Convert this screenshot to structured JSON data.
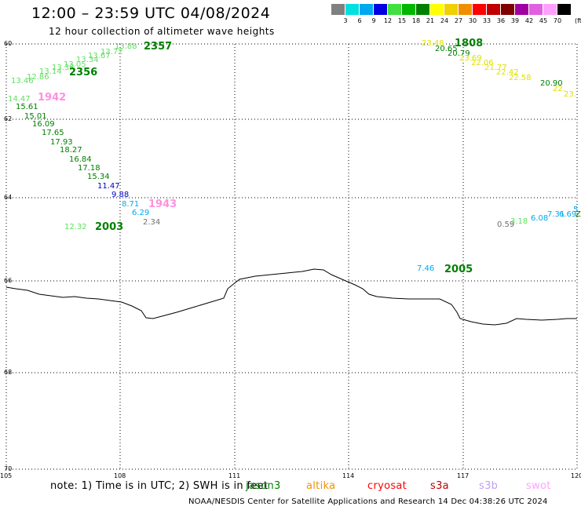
{
  "header": {
    "title": "12:00 – 23:59 UTC 04/08/2024",
    "subtitle": "12 hour collection of altimeter wave heights"
  },
  "legend": {
    "unit": "(ft)",
    "items": [
      {
        "label": "3",
        "color": "#808080"
      },
      {
        "label": "6",
        "color": "#00e0e0"
      },
      {
        "label": "9",
        "color": "#00a8f0"
      },
      {
        "label": "12",
        "color": "#0000e0"
      },
      {
        "label": "15",
        "color": "#40e040"
      },
      {
        "label": "18",
        "color": "#00b800"
      },
      {
        "label": "21",
        "color": "#008000"
      },
      {
        "label": "24",
        "color": "#ffff00"
      },
      {
        "label": "27",
        "color": "#f0d000"
      },
      {
        "label": "30",
        "color": "#f09000"
      },
      {
        "label": "33",
        "color": "#ff0000"
      },
      {
        "label": "36",
        "color": "#c00000"
      },
      {
        "label": "39",
        "color": "#800000"
      },
      {
        "label": "42",
        "color": "#a000a0"
      },
      {
        "label": "45",
        "color": "#e060e0"
      },
      {
        "label": "70",
        "color": "#ffa0ff"
      },
      {
        "label": "",
        "color": "#000000"
      }
    ]
  },
  "axes": {
    "lat_labels": [
      "60",
      "62",
      "64",
      "66",
      "68",
      "70"
    ],
    "lon_labels": [
      "105",
      "108",
      "111",
      "114",
      "117",
      "120"
    ]
  },
  "passes": [
    {
      "label": "2357",
      "color": "#008000"
    },
    {
      "label": "2356",
      "color": "#008000"
    },
    {
      "label": "1942",
      "color": "#ff90e0"
    },
    {
      "label": "1943",
      "color": "#ff90e0"
    },
    {
      "label": "2003",
      "color": "#008000"
    },
    {
      "label": "1808",
      "color": "#008000"
    },
    {
      "label": "2005",
      "color": "#008000"
    }
  ],
  "observations": [
    {
      "value": "13.88",
      "color": "#60e060"
    },
    {
      "value": "13.72",
      "color": "#60e060"
    },
    {
      "value": "13.67",
      "color": "#60e060"
    },
    {
      "value": "13.34",
      "color": "#60e060"
    },
    {
      "value": "13.05",
      "color": "#60e060"
    },
    {
      "value": "13.38",
      "color": "#60e060"
    },
    {
      "value": "13.14",
      "color": "#60e060"
    },
    {
      "value": "12.86",
      "color": "#60e060"
    },
    {
      "value": "13.46",
      "color": "#60e060"
    },
    {
      "value": "14.47",
      "color": "#60e060"
    },
    {
      "value": "15.61",
      "color": "#008000"
    },
    {
      "value": "15.01",
      "color": "#008000"
    },
    {
      "value": "16.09",
      "color": "#008000"
    },
    {
      "value": "17.65",
      "color": "#008000"
    },
    {
      "value": "17.93",
      "color": "#008000"
    },
    {
      "value": "18.27",
      "color": "#008000"
    },
    {
      "value": "16.84",
      "color": "#008000"
    },
    {
      "value": "17.18",
      "color": "#008000"
    },
    {
      "value": "15.34",
      "color": "#008000"
    },
    {
      "value": "11.47",
      "color": "#0000c0"
    },
    {
      "value": "9.88",
      "color": "#0000c0"
    },
    {
      "value": "8.71",
      "color": "#00a8f0"
    },
    {
      "value": "6.29",
      "color": "#00a8f0"
    },
    {
      "value": "2.34",
      "color": "#707070"
    },
    {
      "value": "12.32",
      "color": "#60e060"
    },
    {
      "value": "23.48",
      "color": "#e0e000"
    },
    {
      "value": "20.65",
      "color": "#008000"
    },
    {
      "value": "20.79",
      "color": "#008000"
    },
    {
      "value": "23.69",
      "color": "#e0e000"
    },
    {
      "value": "22.06",
      "color": "#e0e000"
    },
    {
      "value": "21.77",
      "color": "#e0e000"
    },
    {
      "value": "22.42",
      "color": "#e0e000"
    },
    {
      "value": "22.58",
      "color": "#e0e000"
    },
    {
      "value": "20.90",
      "color": "#008000"
    },
    {
      "value": "22.",
      "color": "#e0e000"
    },
    {
      "value": "23.",
      "color": "#e0e000"
    },
    {
      "value": "7.46",
      "color": "#00a8f0"
    },
    {
      "value": "0.59",
      "color": "#707070"
    },
    {
      "value": "3.18",
      "color": "#60e060"
    },
    {
      "value": "6.08",
      "color": "#00a8f0"
    },
    {
      "value": "7.31",
      "color": "#00a8f0"
    },
    {
      "value": "6.69",
      "color": "#00a8f0"
    },
    {
      "value": "5",
      "color": "#00a8f0"
    },
    {
      "value": "Z",
      "color": "#008000"
    }
  ],
  "notes": {
    "note": "note:  1) Time is in UTC;  2) SWH is in feet",
    "satellites": [
      {
        "label": "jason3",
        "color": "#008000"
      },
      {
        "label": "altika",
        "color": "#f09000"
      },
      {
        "label": "cryosat",
        "color": "#ff0000"
      },
      {
        "label": "s3a",
        "color": "#c00000"
      },
      {
        "label": "s3b",
        "color": "#c0a0f0"
      },
      {
        "label": "swot",
        "color": "#ffa0ff"
      }
    ],
    "footer": "NOAA/NESDIS Center for Satellite Applications and Research     14 Dec 04:38:26 UTC 2024"
  }
}
